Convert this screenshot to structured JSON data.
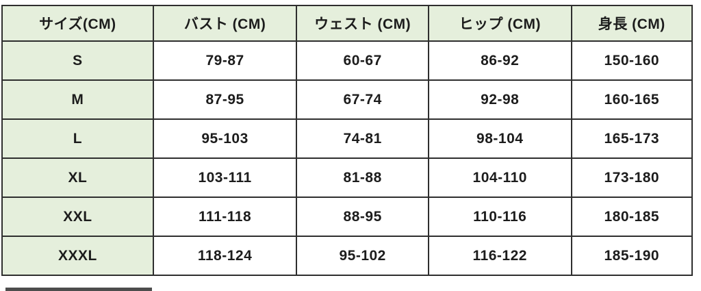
{
  "table": {
    "name": "size-chart",
    "columns": [
      "サイズ(CM)",
      "バスト (CM)",
      "ウェスト (CM)",
      "ヒップ (CM)",
      "身長 (CM)"
    ],
    "rows": [
      {
        "size": "S",
        "bust": "79-87",
        "waist": "60-67",
        "hip": "86-92",
        "height": "150-160"
      },
      {
        "size": "M",
        "bust": "87-95",
        "waist": "67-74",
        "hip": "92-98",
        "height": "160-165"
      },
      {
        "size": "L",
        "bust": "95-103",
        "waist": "74-81",
        "hip": "98-104",
        "height": "165-173"
      },
      {
        "size": "XL",
        "bust": "103-111",
        "waist": "81-88",
        "hip": "104-110",
        "height": "173-180"
      },
      {
        "size": "XXL",
        "bust": "111-118",
        "waist": "88-95",
        "hip": "110-116",
        "height": "180-185"
      },
      {
        "size": "XXXL",
        "bust": "118-124",
        "waist": "95-102",
        "hip": "116-122",
        "height": "185-190"
      }
    ]
  },
  "colors": {
    "header_bg": "#e5efdc",
    "border": "#2e2e2e",
    "text": "#1c1c1c"
  }
}
